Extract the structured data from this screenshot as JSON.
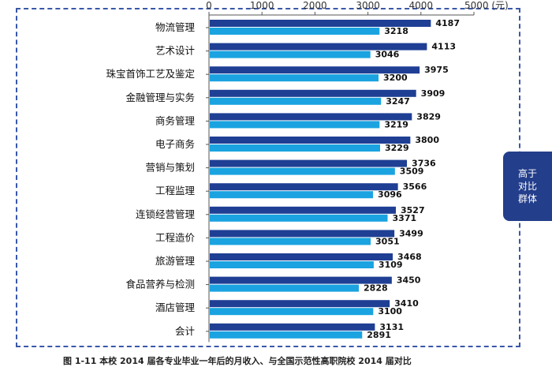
{
  "chart_data": {
    "type": "bar",
    "orientation": "horizontal",
    "xlim": [
      0,
      5000
    ],
    "ticks": [
      0,
      1000,
      2000,
      3000,
      4000,
      5000
    ],
    "tick_labels": [
      "0",
      "1000",
      "2000",
      "3000",
      "4000",
      "5000 (元)"
    ],
    "grid": false,
    "categories": [
      "物流管理",
      "艺术设计",
      "珠宝首饰工艺及鉴定",
      "金融管理与实务",
      "商务管理",
      "电子商务",
      "营销与策划",
      "工程监理",
      "连锁经营管理",
      "工程造价",
      "旅游管理",
      "食品营养与检测",
      "酒店管理",
      "会计"
    ],
    "series": [
      {
        "color": "#1f3f94",
        "values": [
          4187,
          4113,
          3975,
          3909,
          3829,
          3800,
          3736,
          3566,
          3527,
          3499,
          3468,
          3450,
          3410,
          3131
        ]
      },
      {
        "color": "#1aa3e0",
        "values": [
          3218,
          3046,
          3200,
          3247,
          3219,
          3229,
          3509,
          3096,
          3371,
          3051,
          3109,
          2828,
          3100,
          2891
        ]
      }
    ]
  },
  "side_tab": {
    "text": "高于\n对比\n群体",
    "color": "#233e8b"
  },
  "caption": "图 1-11   本校 2014 届各专业毕业一年后的月收入、与全国示范性高职院校 2014 届对比"
}
